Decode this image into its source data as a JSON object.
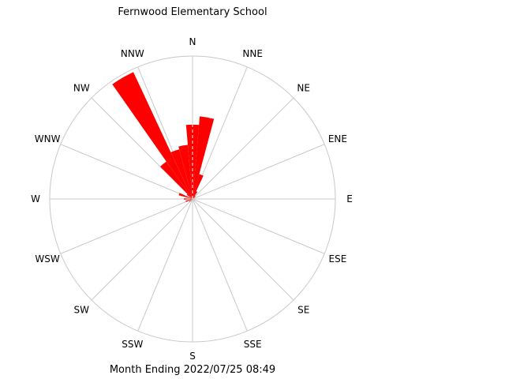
{
  "title": "Fernwood Elementary School",
  "footer": "Month Ending 2022/07/25 08:49",
  "chart_data": {
    "type": "wind-rose",
    "title": "Fernwood Elementary School",
    "subtitle": "Month Ending 2022/07/25 08:49",
    "directions": [
      "N",
      "NNE",
      "NE",
      "ENE",
      "E",
      "ESE",
      "SE",
      "SSE",
      "S",
      "SSW",
      "SW",
      "WSW",
      "W",
      "WNW",
      "NW",
      "NNW"
    ],
    "direction_step_deg": 10,
    "max_radius_value": 1.0,
    "bar_color": "#ff0000",
    "grid_color": "#c8c8c8",
    "bars": [
      {
        "bearing": 0,
        "value": 0.52
      },
      {
        "bearing": 10,
        "value": 0.58
      },
      {
        "bearing": 20,
        "value": 0.18
      },
      {
        "bearing": 30,
        "value": 0.06
      },
      {
        "bearing": 40,
        "value": 0.03
      },
      {
        "bearing": 50,
        "value": 0.02
      },
      {
        "bearing": 230,
        "value": 0.03
      },
      {
        "bearing": 250,
        "value": 0.05
      },
      {
        "bearing": 270,
        "value": 0.06
      },
      {
        "bearing": 290,
        "value": 0.1
      },
      {
        "bearing": 310,
        "value": 0.05
      },
      {
        "bearing": 320,
        "value": 0.32
      },
      {
        "bearing": 330,
        "value": 0.98
      },
      {
        "bearing": 340,
        "value": 0.36
      },
      {
        "bearing": 350,
        "value": 0.38
      }
    ]
  }
}
